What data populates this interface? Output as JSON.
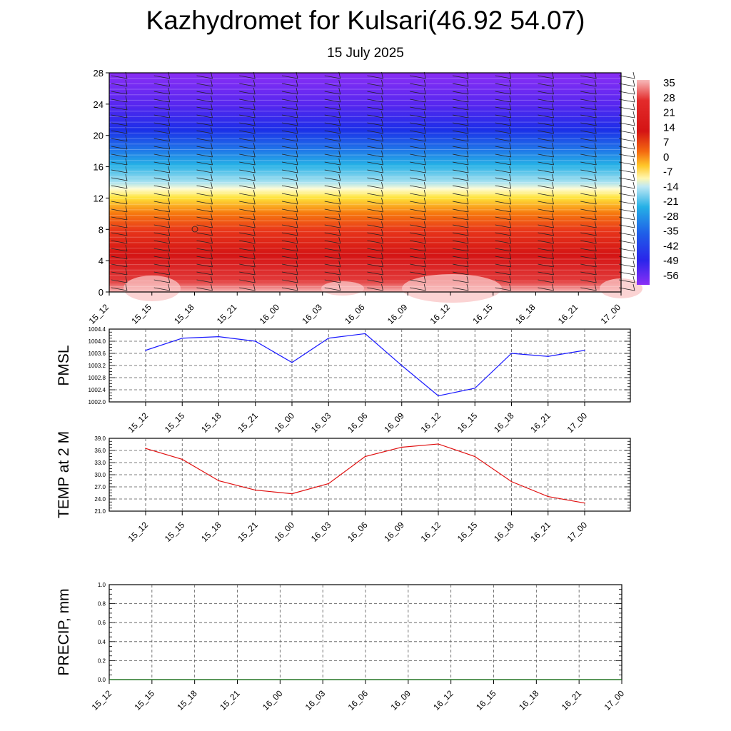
{
  "title": "Kazhydromet for Kulsari(46.92 54.07)",
  "subtitle": "15 July 2025",
  "colors": {
    "pmsl_line": "#1a1aff",
    "temp_line": "#e01010",
    "precip_line": "#1a7a1a"
  },
  "chart_data": [
    {
      "type": "heatmap",
      "title": "",
      "x_ticks": [
        "15_12",
        "15_15",
        "15_18",
        "15_21",
        "16_00",
        "16_03",
        "16_06",
        "16_09",
        "16_12",
        "16_15",
        "16_18",
        "16_21",
        "17_00"
      ],
      "y_ticks": [
        0,
        4,
        8,
        12,
        16,
        20,
        24,
        28
      ],
      "ylim": [
        0,
        28
      ],
      "colorbar_labels": [
        "35",
        "28",
        "21",
        "14",
        "7",
        "0",
        "-7",
        "-14",
        "-21",
        "-28",
        "-35",
        "-42",
        "-49",
        "-56"
      ],
      "colormap": "blue-cyan-yellow-red (cold to warm)",
      "wind_barbs": true
    },
    {
      "type": "line",
      "ylabel": "PMSL",
      "categories": [
        "15_12",
        "15_15",
        "15_18",
        "15_21",
        "16_00",
        "16_03",
        "16_06",
        "16_09",
        "16_12",
        "16_15",
        "16_18",
        "16_21",
        "17_00"
      ],
      "values": [
        1003.7,
        1004.1,
        1004.15,
        1004.0,
        1003.3,
        1004.1,
        1004.25,
        1003.2,
        1002.2,
        1002.45,
        1003.6,
        1003.5,
        1003.7
      ],
      "y_ticks": [
        "1002.0",
        "1002.4",
        "1002.8",
        "1003.2",
        "1003.6",
        "1004.0",
        "1004.4"
      ],
      "ylim": [
        1002.0,
        1004.4
      ],
      "grid": true
    },
    {
      "type": "line",
      "ylabel": "TEMP at 2 M",
      "categories": [
        "15_12",
        "15_15",
        "15_18",
        "15_21",
        "16_00",
        "16_03",
        "16_06",
        "16_09",
        "16_12",
        "16_15",
        "16_18",
        "16_21",
        "17_00"
      ],
      "values": [
        36.5,
        33.8,
        28.5,
        26.2,
        25.3,
        27.8,
        34.5,
        36.8,
        37.6,
        34.5,
        28.3,
        24.6,
        23.0
      ],
      "y_ticks": [
        "21.0",
        "24.0",
        "27.0",
        "30.0",
        "33.0",
        "36.0",
        "39.0"
      ],
      "ylim": [
        21.0,
        39.0
      ],
      "grid": true
    },
    {
      "type": "line",
      "ylabel": "PRECIP, mm",
      "categories": [
        "15_12",
        "15_15",
        "15_18",
        "15_21",
        "16_00",
        "16_03",
        "16_06",
        "16_09",
        "16_12",
        "16_15",
        "16_18",
        "16_21",
        "17_00"
      ],
      "values": [
        0,
        0,
        0,
        0,
        0,
        0,
        0,
        0,
        0,
        0,
        0,
        0,
        0
      ],
      "y_ticks": [
        "0.0",
        "0.2",
        "0.4",
        "0.6",
        "0.8",
        "1.0"
      ],
      "ylim": [
        0.0,
        1.0
      ],
      "grid": true
    }
  ]
}
